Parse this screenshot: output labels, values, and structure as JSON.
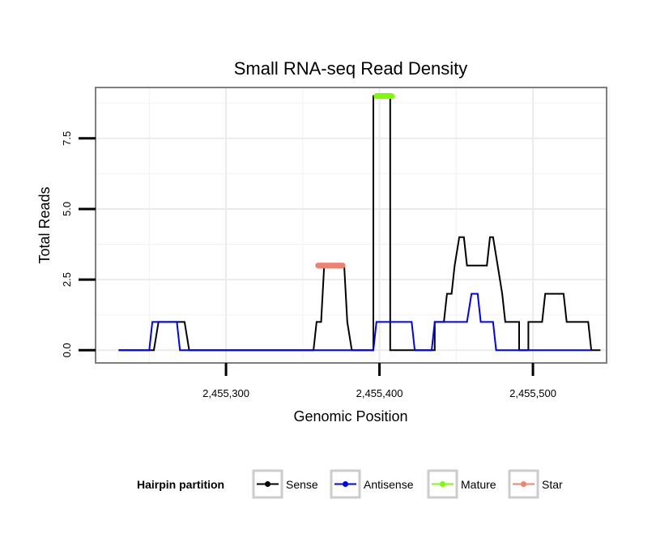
{
  "chart_data": {
    "type": "line",
    "title": "Small RNA-seq Read Density",
    "xlabel": "Genomic Position",
    "ylabel": "Total Reads",
    "xlim": [
      2455215,
      2455548
    ],
    "ylim": [
      -0.45,
      9.3
    ],
    "x_ticks": [
      2455300,
      2455400,
      2455500
    ],
    "x_tick_labels": [
      "2,455,300",
      "2,455,400",
      "2,455,500"
    ],
    "y_ticks": [
      0,
      2.5,
      5,
      7.5
    ],
    "y_tick_labels": [
      "0.0",
      "2.5",
      "5.0",
      "7.5"
    ],
    "grid": true,
    "legend": {
      "title": "Hairpin partition",
      "position": "bottom",
      "items": [
        {
          "label": "Sense",
          "color": "#000000"
        },
        {
          "label": "Antisense",
          "color": "#0000ff"
        },
        {
          "label": "Mature",
          "color": "#7cfc00"
        },
        {
          "label": "Star",
          "color": "#f08070"
        }
      ]
    },
    "series": [
      {
        "name": "Sense",
        "color": "#000000",
        "x": [
          2455230,
          2455253,
          2455256,
          2455273,
          2455276,
          2455357,
          2455359,
          2455362,
          2455364,
          2455377,
          2455379,
          2455382,
          2455396,
          2455396,
          2455407,
          2455407,
          2455424,
          2455436,
          2455436,
          2455442,
          2455444,
          2455447,
          2455449,
          2455452,
          2455455,
          2455457,
          2455470,
          2455472,
          2455474,
          2455477,
          2455480,
          2455482,
          2455484,
          2455491,
          2455491,
          2455497,
          2455497,
          2455504,
          2455506,
          2455508,
          2455520,
          2455522,
          2455536,
          2455538,
          2455544
        ],
        "y": [
          0,
          0,
          1,
          1,
          0,
          0,
          1,
          1,
          3,
          3,
          1,
          0,
          0,
          9,
          9,
          0,
          0,
          0,
          1,
          1,
          2,
          2,
          3,
          4,
          4,
          3,
          3,
          4,
          4,
          3,
          2,
          1,
          1,
          1,
          0,
          0,
          1,
          1,
          1,
          2,
          2,
          1,
          1,
          0,
          0
        ]
      },
      {
        "name": "Antisense",
        "color": "#0000ff",
        "x": [
          2455230,
          2455250,
          2455252,
          2455268,
          2455270,
          2455396,
          2455398,
          2455421,
          2455423,
          2455434,
          2455436,
          2455457,
          2455460,
          2455464,
          2455466,
          2455474,
          2455476,
          2455538
        ],
        "y": [
          0,
          0,
          1,
          1,
          0,
          0,
          1,
          1,
          0,
          0,
          1,
          1,
          2,
          2,
          1,
          1,
          0,
          0
        ]
      },
      {
        "name": "Mature",
        "color": "#7cfc00",
        "x": [
          2455398,
          2455408
        ],
        "y": [
          9,
          9
        ]
      },
      {
        "name": "Star",
        "color": "#f08070",
        "x": [
          2455360,
          2455376
        ],
        "y": [
          3,
          3
        ]
      }
    ]
  }
}
